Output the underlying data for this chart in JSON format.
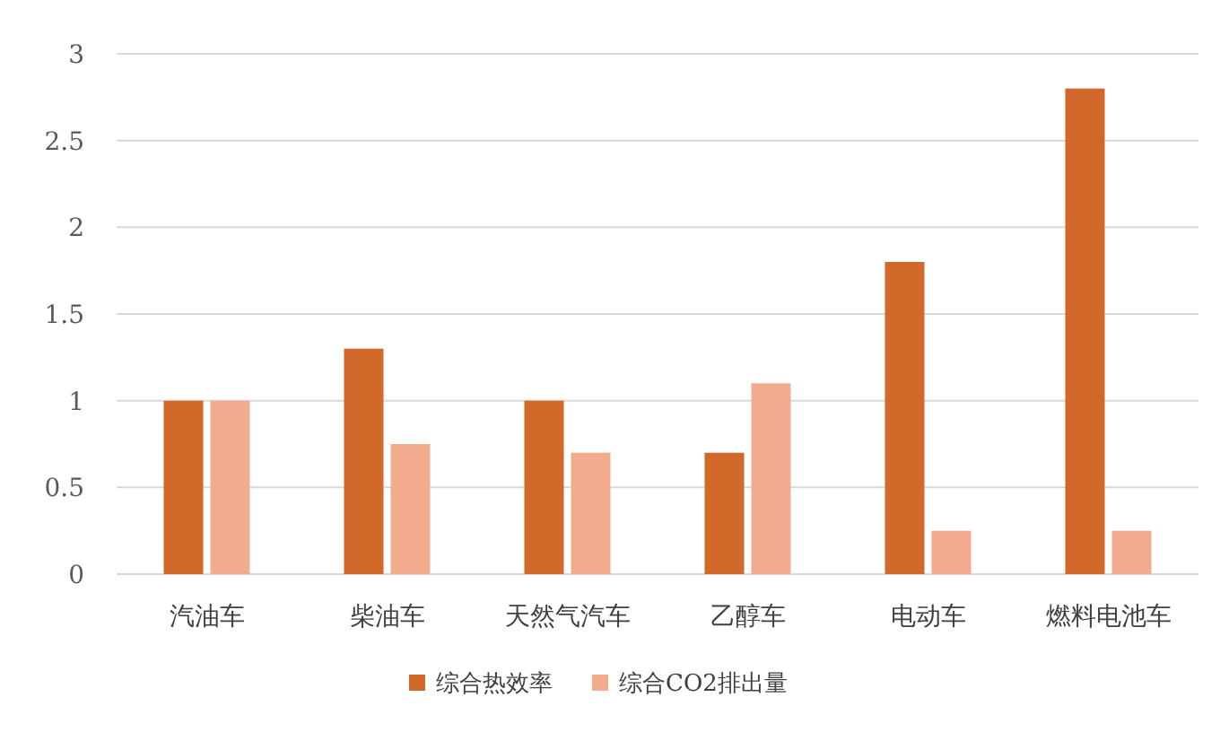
{
  "chart_data": {
    "type": "bar",
    "categories": [
      "汽油车",
      "柴油车",
      "天然气汽车",
      "乙醇车",
      "电动车",
      "燃料电池车"
    ],
    "series": [
      {
        "name": "综合热效率",
        "color": "#d2692b",
        "values": [
          1,
          1.3,
          1,
          0.7,
          1.8,
          2.8
        ]
      },
      {
        "name": "综合CO2排出量",
        "color": "#f2ab8d",
        "values": [
          1,
          0.75,
          0.7,
          1.1,
          0.25,
          0.25
        ]
      }
    ],
    "ylim": [
      0,
      3
    ],
    "yticks": [
      0,
      0.5,
      1,
      1.5,
      2,
      2.5,
      3
    ],
    "grid": "y",
    "legend": "bottom"
  }
}
